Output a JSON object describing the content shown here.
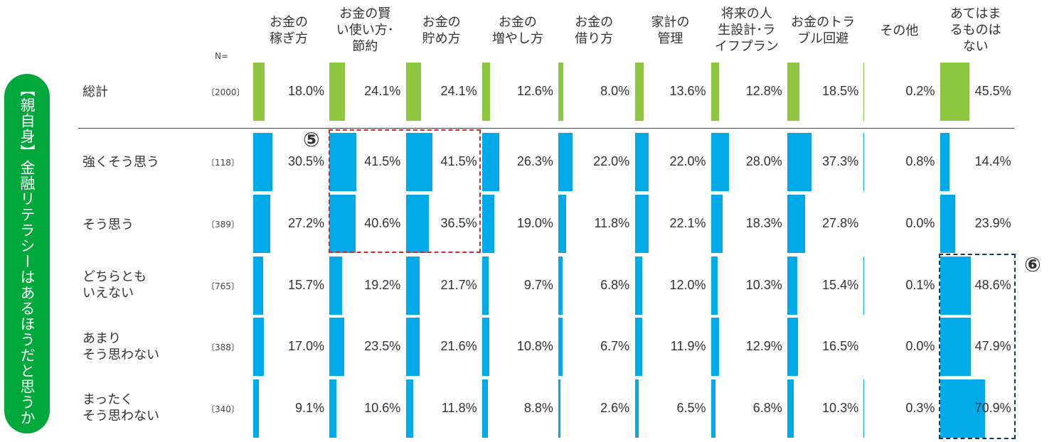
{
  "side_label": "【親自身】金融リテラシーはあるほうだと思うか",
  "n_label": "N=",
  "markers": {
    "five": "⑤",
    "six": "⑥"
  },
  "colors": {
    "total_bar": "#8dc63f",
    "segment_bar": "#00a9e8",
    "side_label_bg": "#00a83b"
  },
  "chart_data": {
    "type": "bar",
    "categories": [
      "お金の稼ぎ方",
      "お金の賢い使い方･節約",
      "お金の貯め方",
      "お金の増やし方",
      "お金の借り方",
      "家計の管理",
      "将来の人生設計･ライフプラン",
      "お金のトラブル回避",
      "その他",
      "あてはまるものはない"
    ],
    "category_lines": [
      [
        "お金の",
        "稼ぎ方"
      ],
      [
        "お金の賢",
        "い使い方･",
        "節約"
      ],
      [
        "お金の",
        "貯め方"
      ],
      [
        "お金の",
        "増やし方"
      ],
      [
        "お金の",
        "借り方"
      ],
      [
        "家計の",
        "管理"
      ],
      [
        "将来の人",
        "生設計･ラ",
        "イフプラン"
      ],
      [
        "お金のトラ",
        "ブル回避"
      ],
      [
        "その他"
      ],
      [
        "あてはま",
        "るものは",
        "ない"
      ]
    ],
    "series": [
      {
        "name": "総計",
        "n": "〔2000〕",
        "values": [
          18.0,
          24.1,
          24.1,
          12.6,
          8.0,
          13.6,
          12.8,
          18.5,
          0.2,
          45.5
        ]
      },
      {
        "name": "強くそう思う",
        "n": "〔118〕",
        "values": [
          30.5,
          41.5,
          41.5,
          26.3,
          22.0,
          22.0,
          28.0,
          37.3,
          0.8,
          14.4
        ]
      },
      {
        "name": "そう思う",
        "n": "〔389〕",
        "values": [
          27.2,
          40.6,
          36.5,
          19.0,
          11.8,
          22.1,
          18.3,
          27.8,
          0.0,
          23.9
        ]
      },
      {
        "name": "どちらとも\nいえない",
        "n": "〔765〕",
        "values": [
          15.7,
          19.2,
          21.7,
          9.7,
          6.8,
          12.0,
          10.3,
          15.4,
          0.1,
          48.6
        ]
      },
      {
        "name": "あまり\nそう思わない",
        "n": "〔388〕",
        "values": [
          17.0,
          23.5,
          21.6,
          10.8,
          6.7,
          11.9,
          12.9,
          16.5,
          0.0,
          47.9
        ]
      },
      {
        "name": "まったく\nそう思わない",
        "n": "〔340〕",
        "values": [
          9.1,
          10.6,
          11.8,
          8.8,
          2.6,
          6.5,
          6.8,
          10.3,
          0.3,
          70.9
        ]
      }
    ],
    "unit": "%"
  }
}
